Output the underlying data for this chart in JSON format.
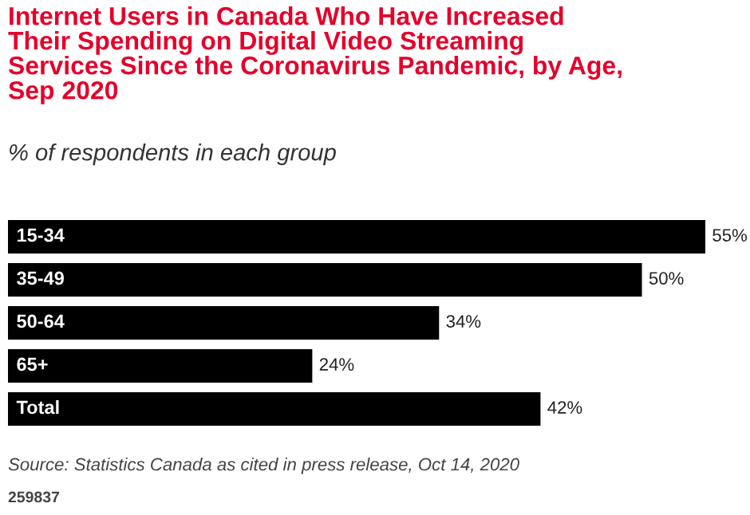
{
  "chart_data": {
    "type": "bar",
    "orientation": "horizontal",
    "title": "Internet Users in Canada Who Have Increased\nTheir Spending on Digital Video Streaming\nServices Since the Coronavirus Pandemic, by Age,\nSep 2020",
    "subtitle": "% of respondents in each group",
    "categories": [
      "15-34",
      "35-49",
      "50-64",
      "65+",
      "Total"
    ],
    "values": [
      55,
      50,
      34,
      24,
      42
    ],
    "value_labels": [
      "55%",
      "50%",
      "34%",
      "24%",
      "42%"
    ],
    "color": "#000000",
    "annotations": [
      "Source: Statistics Canada as cited in press release, Oct 14, 2020",
      "259837"
    ]
  }
}
